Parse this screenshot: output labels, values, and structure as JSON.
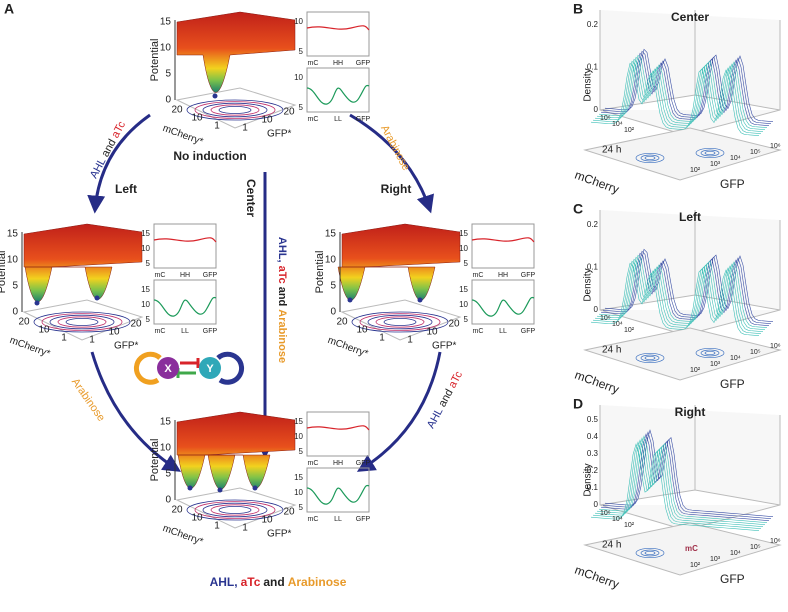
{
  "panel_labels": [
    "A",
    "B",
    "C",
    "D"
  ],
  "network": {
    "nodes": [
      "X",
      "Y"
    ]
  },
  "landscapes": [
    {
      "title": [
        "No induction"
      ],
      "z_label": "Potential",
      "z_ticks": [
        15,
        10,
        5,
        0
      ],
      "x_label": "mCherry*",
      "x_ticks": [
        20,
        10,
        1
      ],
      "y_ticks": [
        1,
        10,
        20
      ],
      "y_label": "GFP*",
      "profiles": [
        {
          "ticks": [
            10,
            5
          ],
          "labels": [
            "mC",
            "HH",
            "GFP"
          ]
        },
        {
          "ticks": [
            10,
            5
          ],
          "labels": [
            "mC",
            "LL",
            "GFP"
          ]
        }
      ]
    },
    {
      "title": [
        "Left"
      ],
      "z_label": "Potential",
      "z_ticks": [
        15,
        10,
        5,
        0
      ],
      "x_label": "mCherry*",
      "x_ticks": [
        20,
        10,
        1
      ],
      "y_ticks": [
        1,
        10,
        20
      ],
      "y_label": "GFP*",
      "profiles": [
        {
          "ticks": [
            15,
            10,
            5
          ],
          "labels": [
            "mC",
            "HH",
            "GFP"
          ]
        },
        {
          "ticks": [
            15,
            10,
            5
          ],
          "labels": [
            "mC",
            "LL",
            "GFP"
          ]
        }
      ]
    },
    {
      "title": [
        "Right"
      ],
      "z_label": "Potential",
      "z_ticks": [
        15,
        10,
        5,
        0
      ],
      "x_label": "mCherry*",
      "x_ticks": [
        20,
        10,
        1
      ],
      "y_ticks": [
        1,
        10,
        20
      ],
      "y_label": "GFP*",
      "profiles": [
        {
          "ticks": [
            15,
            10,
            5
          ],
          "labels": [
            "mC",
            "HH",
            "GFP"
          ]
        },
        {
          "ticks": [
            15,
            10,
            5
          ],
          "labels": [
            "mC",
            "LL",
            "GFP"
          ]
        }
      ]
    },
    {
      "title": [
        "AHL,",
        "aTc",
        "and",
        "Arabinose"
      ],
      "z_label": "Potential",
      "z_ticks": [
        15,
        10,
        5,
        0
      ],
      "x_label": "mCherry*",
      "x_ticks": [
        20,
        10,
        1
      ],
      "y_ticks": [
        1,
        10,
        20
      ],
      "y_label": "GFP*",
      "profiles": [
        {
          "ticks": [
            15,
            10,
            5
          ],
          "labels": [
            "mC",
            "HH",
            "GFP"
          ]
        },
        {
          "ticks": [
            15,
            10,
            5
          ],
          "labels": [
            "mC",
            "LL",
            "GFP"
          ]
        }
      ]
    }
  ],
  "arrows": [
    {
      "parts": [
        "AHL",
        "and",
        "aTc"
      ]
    },
    {
      "parts": [
        "Arabinose"
      ]
    },
    {
      "label": "Center",
      "parts": [
        "AHL,",
        "aTc",
        "and",
        "Arabinose"
      ]
    },
    {
      "parts": [
        "Arabinose"
      ]
    },
    {
      "parts": [
        "AHL",
        "and",
        "aTc"
      ]
    }
  ],
  "density_panels": [
    {
      "title": "Center",
      "z_label": "Density",
      "z_ticks": [
        0.2,
        0.1,
        0
      ],
      "time": "24 h",
      "x_label": "mCherry",
      "y_label": "GFP",
      "x_ticks": [
        "10⁶",
        "10⁴",
        "10²"
      ],
      "y_ticks": [
        "10²",
        "10³",
        "10⁴",
        "10⁵",
        "10⁶"
      ],
      "note": ""
    },
    {
      "title": "Left",
      "z_label": "Density",
      "z_ticks": [
        0.2,
        0.1,
        0
      ],
      "time": "24 h",
      "x_label": "mCherry",
      "y_label": "GFP",
      "x_ticks": [
        "10⁶",
        "10⁴",
        "10²"
      ],
      "y_ticks": [
        "10²",
        "10³",
        "10⁴",
        "10⁵",
        "10⁶"
      ]
    },
    {
      "title": "Right",
      "z_label": "Density",
      "z_ticks": [
        0.5,
        0.4,
        0.3,
        0.2,
        0.1,
        0
      ],
      "time": "24 h",
      "x_label": "mCherry",
      "y_label": "GFP",
      "x_ticks": [
        "10⁶",
        "10⁴",
        "10²"
      ],
      "y_ticks": [
        "10²",
        "10³",
        "10⁴",
        "10⁵",
        "10⁶"
      ],
      "note": "mC"
    }
  ]
}
